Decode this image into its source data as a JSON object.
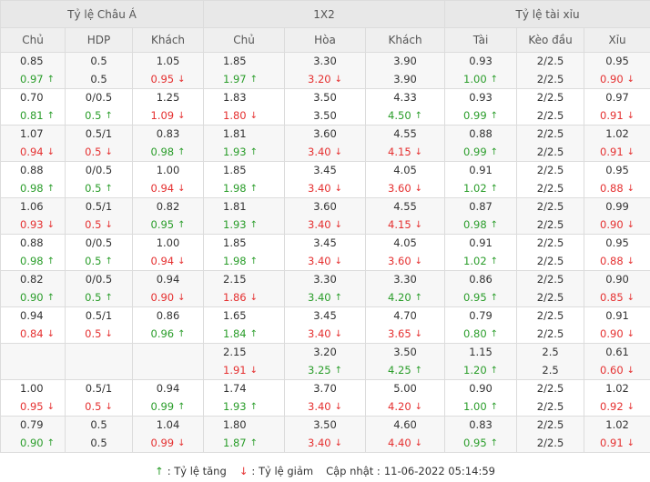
{
  "header": {
    "groups": [
      "Tỷ lệ Châu Á",
      "1X2",
      "Tỷ lệ tài xỉu"
    ],
    "columns": [
      "Chủ",
      "HDP",
      "Khách",
      "Chủ",
      "Hòa",
      "Khách",
      "Tài",
      "Kèo đầu",
      "Xỉu"
    ]
  },
  "arrows": {
    "up": "↑",
    "down": "↓"
  },
  "colors": {
    "up": "#2a9d2a",
    "down": "#e53030",
    "header_bg": "#e8e8e8",
    "row_alt_bg": "#f7f7f7"
  },
  "rows": [
    {
      "cells": [
        {
          "top": {
            "v": "0.85"
          },
          "bottom": {
            "v": "0.97",
            "dir": "up"
          }
        },
        {
          "top": {
            "v": "0.5"
          },
          "bottom": {
            "v": "0.5"
          }
        },
        {
          "top": {
            "v": "1.05"
          },
          "bottom": {
            "v": "0.95",
            "dir": "down"
          }
        },
        {
          "top": {
            "v": "1.85"
          },
          "bottom": {
            "v": "1.97",
            "dir": "up"
          }
        },
        {
          "top": {
            "v": "3.30"
          },
          "bottom": {
            "v": "3.20",
            "dir": "down"
          }
        },
        {
          "top": {
            "v": "3.90"
          },
          "bottom": {
            "v": "3.90"
          }
        },
        {
          "top": {
            "v": "0.93"
          },
          "bottom": {
            "v": "1.00",
            "dir": "up"
          }
        },
        {
          "top": {
            "v": "2/2.5"
          },
          "bottom": {
            "v": "2/2.5"
          }
        },
        {
          "top": {
            "v": "0.95"
          },
          "bottom": {
            "v": "0.90",
            "dir": "down"
          }
        }
      ]
    },
    {
      "cells": [
        {
          "top": {
            "v": "0.70"
          },
          "bottom": {
            "v": "0.81",
            "dir": "up"
          }
        },
        {
          "top": {
            "v": "0/0.5"
          },
          "bottom": {
            "v": "0.5",
            "dir": "up"
          }
        },
        {
          "top": {
            "v": "1.25"
          },
          "bottom": {
            "v": "1.09",
            "dir": "down"
          }
        },
        {
          "top": {
            "v": "1.83"
          },
          "bottom": {
            "v": "1.80",
            "dir": "down"
          }
        },
        {
          "top": {
            "v": "3.50"
          },
          "bottom": {
            "v": "3.50"
          }
        },
        {
          "top": {
            "v": "4.33"
          },
          "bottom": {
            "v": "4.50",
            "dir": "up"
          }
        },
        {
          "top": {
            "v": "0.93"
          },
          "bottom": {
            "v": "0.99",
            "dir": "up"
          }
        },
        {
          "top": {
            "v": "2/2.5"
          },
          "bottom": {
            "v": "2/2.5"
          }
        },
        {
          "top": {
            "v": "0.97"
          },
          "bottom": {
            "v": "0.91",
            "dir": "down"
          }
        }
      ]
    },
    {
      "cells": [
        {
          "top": {
            "v": "1.07"
          },
          "bottom": {
            "v": "0.94",
            "dir": "down"
          }
        },
        {
          "top": {
            "v": "0.5/1"
          },
          "bottom": {
            "v": "0.5",
            "dir": "down"
          }
        },
        {
          "top": {
            "v": "0.83"
          },
          "bottom": {
            "v": "0.98",
            "dir": "up"
          }
        },
        {
          "top": {
            "v": "1.81"
          },
          "bottom": {
            "v": "1.93",
            "dir": "up"
          }
        },
        {
          "top": {
            "v": "3.60"
          },
          "bottom": {
            "v": "3.40",
            "dir": "down"
          }
        },
        {
          "top": {
            "v": "4.55"
          },
          "bottom": {
            "v": "4.15",
            "dir": "down"
          }
        },
        {
          "top": {
            "v": "0.88"
          },
          "bottom": {
            "v": "0.99",
            "dir": "up"
          }
        },
        {
          "top": {
            "v": "2/2.5"
          },
          "bottom": {
            "v": "2/2.5"
          }
        },
        {
          "top": {
            "v": "1.02"
          },
          "bottom": {
            "v": "0.91",
            "dir": "down"
          }
        }
      ]
    },
    {
      "cells": [
        {
          "top": {
            "v": "0.88"
          },
          "bottom": {
            "v": "0.98",
            "dir": "up"
          }
        },
        {
          "top": {
            "v": "0/0.5"
          },
          "bottom": {
            "v": "0.5",
            "dir": "up"
          }
        },
        {
          "top": {
            "v": "1.00"
          },
          "bottom": {
            "v": "0.94",
            "dir": "down"
          }
        },
        {
          "top": {
            "v": "1.85"
          },
          "bottom": {
            "v": "1.98",
            "dir": "up"
          }
        },
        {
          "top": {
            "v": "3.45"
          },
          "bottom": {
            "v": "3.40",
            "dir": "down"
          }
        },
        {
          "top": {
            "v": "4.05"
          },
          "bottom": {
            "v": "3.60",
            "dir": "down"
          }
        },
        {
          "top": {
            "v": "0.91"
          },
          "bottom": {
            "v": "1.02",
            "dir": "up"
          }
        },
        {
          "top": {
            "v": "2/2.5"
          },
          "bottom": {
            "v": "2/2.5"
          }
        },
        {
          "top": {
            "v": "0.95"
          },
          "bottom": {
            "v": "0.88",
            "dir": "down"
          }
        }
      ]
    },
    {
      "cells": [
        {
          "top": {
            "v": "1.06"
          },
          "bottom": {
            "v": "0.93",
            "dir": "down"
          }
        },
        {
          "top": {
            "v": "0.5/1"
          },
          "bottom": {
            "v": "0.5",
            "dir": "down"
          }
        },
        {
          "top": {
            "v": "0.82"
          },
          "bottom": {
            "v": "0.95",
            "dir": "up"
          }
        },
        {
          "top": {
            "v": "1.81"
          },
          "bottom": {
            "v": "1.93",
            "dir": "up"
          }
        },
        {
          "top": {
            "v": "3.60"
          },
          "bottom": {
            "v": "3.40",
            "dir": "down"
          }
        },
        {
          "top": {
            "v": "4.55"
          },
          "bottom": {
            "v": "4.15",
            "dir": "down"
          }
        },
        {
          "top": {
            "v": "0.87"
          },
          "bottom": {
            "v": "0.98",
            "dir": "up"
          }
        },
        {
          "top": {
            "v": "2/2.5"
          },
          "bottom": {
            "v": "2/2.5"
          }
        },
        {
          "top": {
            "v": "0.99"
          },
          "bottom": {
            "v": "0.90",
            "dir": "down"
          }
        }
      ]
    },
    {
      "cells": [
        {
          "top": {
            "v": "0.88"
          },
          "bottom": {
            "v": "0.98",
            "dir": "up"
          }
        },
        {
          "top": {
            "v": "0/0.5"
          },
          "bottom": {
            "v": "0.5",
            "dir": "up"
          }
        },
        {
          "top": {
            "v": "1.00"
          },
          "bottom": {
            "v": "0.94",
            "dir": "down"
          }
        },
        {
          "top": {
            "v": "1.85"
          },
          "bottom": {
            "v": "1.98",
            "dir": "up"
          }
        },
        {
          "top": {
            "v": "3.45"
          },
          "bottom": {
            "v": "3.40",
            "dir": "down"
          }
        },
        {
          "top": {
            "v": "4.05"
          },
          "bottom": {
            "v": "3.60",
            "dir": "down"
          }
        },
        {
          "top": {
            "v": "0.91"
          },
          "bottom": {
            "v": "1.02",
            "dir": "up"
          }
        },
        {
          "top": {
            "v": "2/2.5"
          },
          "bottom": {
            "v": "2/2.5"
          }
        },
        {
          "top": {
            "v": "0.95"
          },
          "bottom": {
            "v": "0.88",
            "dir": "down"
          }
        }
      ]
    },
    {
      "cells": [
        {
          "top": {
            "v": "0.82"
          },
          "bottom": {
            "v": "0.90",
            "dir": "up"
          }
        },
        {
          "top": {
            "v": "0/0.5"
          },
          "bottom": {
            "v": "0.5",
            "dir": "up"
          }
        },
        {
          "top": {
            "v": "0.94"
          },
          "bottom": {
            "v": "0.90",
            "dir": "down"
          }
        },
        {
          "top": {
            "v": "2.15"
          },
          "bottom": {
            "v": "1.86",
            "dir": "down"
          }
        },
        {
          "top": {
            "v": "3.30"
          },
          "bottom": {
            "v": "3.40",
            "dir": "up"
          }
        },
        {
          "top": {
            "v": "3.30"
          },
          "bottom": {
            "v": "4.20",
            "dir": "up"
          }
        },
        {
          "top": {
            "v": "0.86"
          },
          "bottom": {
            "v": "0.95",
            "dir": "up"
          }
        },
        {
          "top": {
            "v": "2/2.5"
          },
          "bottom": {
            "v": "2/2.5"
          }
        },
        {
          "top": {
            "v": "0.90"
          },
          "bottom": {
            "v": "0.85",
            "dir": "down"
          }
        }
      ]
    },
    {
      "cells": [
        {
          "top": {
            "v": "0.94"
          },
          "bottom": {
            "v": "0.84",
            "dir": "down"
          }
        },
        {
          "top": {
            "v": "0.5/1"
          },
          "bottom": {
            "v": "0.5",
            "dir": "down"
          }
        },
        {
          "top": {
            "v": "0.86"
          },
          "bottom": {
            "v": "0.96",
            "dir": "up"
          }
        },
        {
          "top": {
            "v": "1.65"
          },
          "bottom": {
            "v": "1.84",
            "dir": "up"
          }
        },
        {
          "top": {
            "v": "3.45"
          },
          "bottom": {
            "v": "3.40",
            "dir": "down"
          }
        },
        {
          "top": {
            "v": "4.70"
          },
          "bottom": {
            "v": "3.65",
            "dir": "down"
          }
        },
        {
          "top": {
            "v": "0.79"
          },
          "bottom": {
            "v": "0.80",
            "dir": "up"
          }
        },
        {
          "top": {
            "v": "2/2.5"
          },
          "bottom": {
            "v": "2/2.5"
          }
        },
        {
          "top": {
            "v": "0.91"
          },
          "bottom": {
            "v": "0.90",
            "dir": "down"
          }
        }
      ]
    },
    {
      "cells": [
        {
          "top": {
            "v": ""
          },
          "bottom": {
            "v": ""
          }
        },
        {
          "top": {
            "v": ""
          },
          "bottom": {
            "v": ""
          }
        },
        {
          "top": {
            "v": ""
          },
          "bottom": {
            "v": ""
          }
        },
        {
          "top": {
            "v": "2.15"
          },
          "bottom": {
            "v": "1.91",
            "dir": "down"
          }
        },
        {
          "top": {
            "v": "3.20"
          },
          "bottom": {
            "v": "3.25",
            "dir": "up"
          }
        },
        {
          "top": {
            "v": "3.50"
          },
          "bottom": {
            "v": "4.25",
            "dir": "up"
          }
        },
        {
          "top": {
            "v": "1.15"
          },
          "bottom": {
            "v": "1.20",
            "dir": "up"
          }
        },
        {
          "top": {
            "v": "2.5"
          },
          "bottom": {
            "v": "2.5"
          }
        },
        {
          "top": {
            "v": "0.61"
          },
          "bottom": {
            "v": "0.60",
            "dir": "down"
          }
        }
      ]
    },
    {
      "cells": [
        {
          "top": {
            "v": "1.00"
          },
          "bottom": {
            "v": "0.95",
            "dir": "down"
          }
        },
        {
          "top": {
            "v": "0.5/1"
          },
          "bottom": {
            "v": "0.5",
            "dir": "down"
          }
        },
        {
          "top": {
            "v": "0.94"
          },
          "bottom": {
            "v": "0.99",
            "dir": "up"
          }
        },
        {
          "top": {
            "v": "1.74"
          },
          "bottom": {
            "v": "1.93",
            "dir": "up"
          }
        },
        {
          "top": {
            "v": "3.70"
          },
          "bottom": {
            "v": "3.40",
            "dir": "down"
          }
        },
        {
          "top": {
            "v": "5.00"
          },
          "bottom": {
            "v": "4.20",
            "dir": "down"
          }
        },
        {
          "top": {
            "v": "0.90"
          },
          "bottom": {
            "v": "1.00",
            "dir": "up"
          }
        },
        {
          "top": {
            "v": "2/2.5"
          },
          "bottom": {
            "v": "2/2.5"
          }
        },
        {
          "top": {
            "v": "1.02"
          },
          "bottom": {
            "v": "0.92",
            "dir": "down"
          }
        }
      ]
    },
    {
      "cells": [
        {
          "top": {
            "v": "0.79"
          },
          "bottom": {
            "v": "0.90",
            "dir": "up"
          }
        },
        {
          "top": {
            "v": "0.5"
          },
          "bottom": {
            "v": "0.5"
          }
        },
        {
          "top": {
            "v": "1.04"
          },
          "bottom": {
            "v": "0.99",
            "dir": "down"
          }
        },
        {
          "top": {
            "v": "1.80"
          },
          "bottom": {
            "v": "1.87",
            "dir": "up"
          }
        },
        {
          "top": {
            "v": "3.50"
          },
          "bottom": {
            "v": "3.40",
            "dir": "down"
          }
        },
        {
          "top": {
            "v": "4.60"
          },
          "bottom": {
            "v": "4.40",
            "dir": "down"
          }
        },
        {
          "top": {
            "v": "0.83"
          },
          "bottom": {
            "v": "0.95",
            "dir": "up"
          }
        },
        {
          "top": {
            "v": "2/2.5"
          },
          "bottom": {
            "v": "2/2.5"
          }
        },
        {
          "top": {
            "v": "1.02"
          },
          "bottom": {
            "v": "0.91",
            "dir": "down"
          }
        }
      ]
    }
  ],
  "legend": {
    "up_label": ": Tỷ lệ tăng",
    "down_label": ": Tỷ lệ giảm",
    "updated_label": "Cập nhật :",
    "updated_value": "11-06-2022 05:14:59"
  }
}
